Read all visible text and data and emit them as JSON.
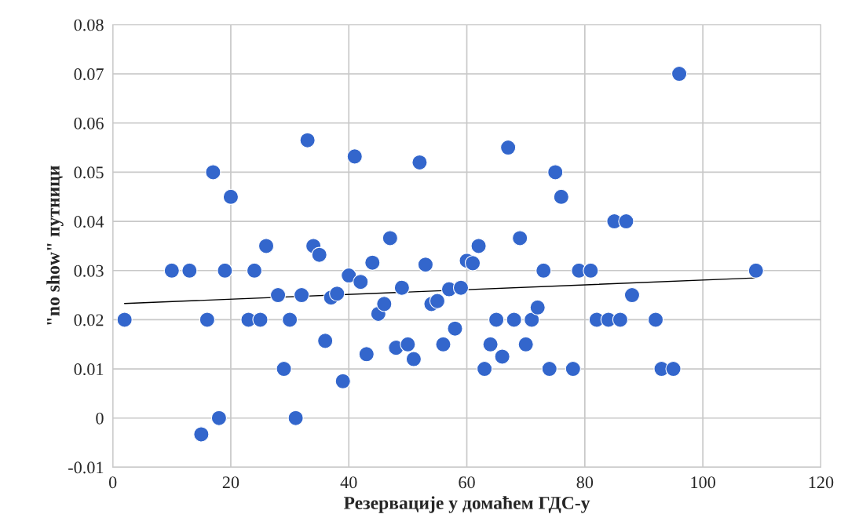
{
  "chart_data": {
    "type": "scatter",
    "xlabel": "Резервације у домаћем ГДС-у",
    "ylabel": "\"no show\" путници",
    "series": [
      {
        "color": "#3366cc",
        "marker": "circle",
        "x": [
          2,
          10,
          13,
          15,
          16,
          17,
          18,
          19,
          20,
          23,
          24,
          25,
          26,
          28,
          29,
          30,
          31,
          32,
          33,
          34,
          35,
          36,
          37,
          38,
          39,
          40,
          41,
          42,
          43,
          44,
          45,
          46,
          47,
          48,
          49,
          50,
          51,
          52,
          53,
          54,
          55,
          56,
          57,
          58,
          59,
          60,
          61,
          62,
          63,
          64,
          65,
          66,
          67,
          68,
          69,
          70,
          71,
          72,
          73,
          74,
          75,
          76,
          78,
          79,
          81,
          82,
          84,
          85,
          86,
          87,
          88,
          92,
          93,
          95,
          96,
          109
        ],
        "values": [
          0.02,
          0.03,
          0.03,
          -0.0033,
          0.02,
          0.05,
          0,
          0.03,
          0.045,
          0.02,
          0.03,
          0.02,
          0.035,
          0.025,
          0.01,
          0.02,
          0,
          0.025,
          0.0565,
          0.035,
          0.0332,
          0.0157,
          0.0245,
          0.0253,
          0.0075,
          0.029,
          0.0532,
          0.0277,
          0.013,
          0.0316,
          0.0212,
          0.0232,
          0.0366,
          0.0143,
          0.0265,
          0.015,
          0.012,
          0.052,
          0.0312,
          0.0232,
          0.0238,
          0.015,
          0.0262,
          0.0182,
          0.0265,
          0.032,
          0.0315,
          0.035,
          0.01,
          0.015,
          0.02,
          0.0125,
          0.055,
          0.02,
          0.0366,
          0.015,
          0.02,
          0.0225,
          0.03,
          0.01,
          0.05,
          0.045,
          0.01,
          0.03,
          0.03,
          0.02,
          0.02,
          0.04,
          0.02,
          0.04,
          0.025,
          0.02,
          0.01,
          0.01,
          0.07,
          0.03
        ]
      },
      {
        "type": "line",
        "color": "#000000",
        "marker": "none",
        "x": [
          2,
          109
        ],
        "values": [
          0.0233,
          0.0285
        ]
      }
    ],
    "xlim": [
      0,
      120
    ],
    "xticks": [
      0,
      20,
      40,
      60,
      80,
      100,
      120
    ],
    "ylim": [
      -0.01,
      0.08
    ],
    "yticks": [
      -0.01,
      0,
      0.01,
      0.02,
      0.03,
      0.04,
      0.05,
      0.06,
      0.07,
      0.08
    ],
    "grid": true
  }
}
